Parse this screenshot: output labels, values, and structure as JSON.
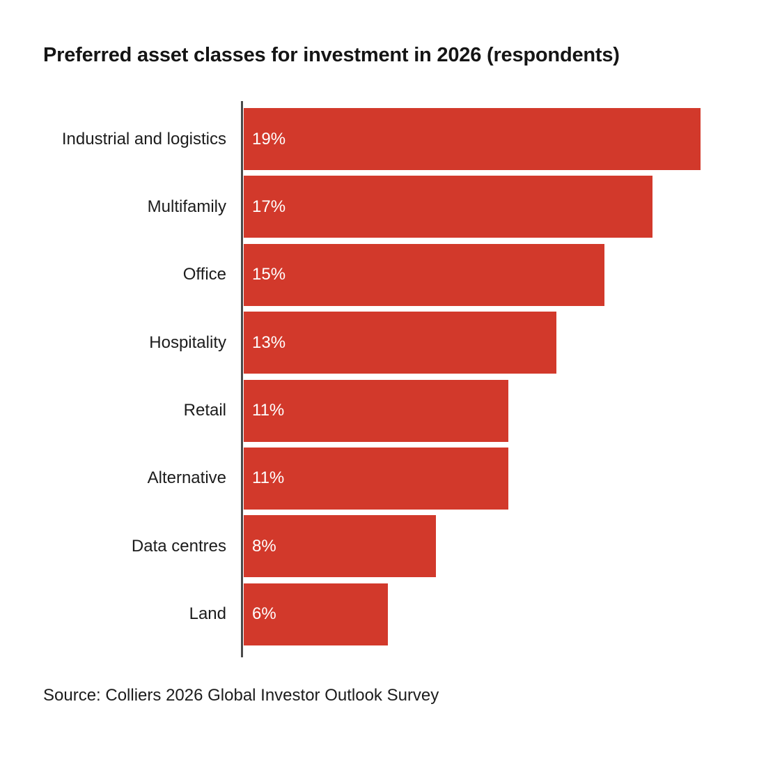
{
  "chart_data": {
    "type": "bar",
    "orientation": "horizontal",
    "title": "Preferred asset classes for investment in 2026 (respondents)",
    "categories": [
      "Industrial and logistics",
      "Multifamily",
      "Office",
      "Hospitality",
      "Retail",
      "Alternative",
      "Data centres",
      "Land"
    ],
    "values": [
      19,
      17,
      15,
      13,
      11,
      11,
      8,
      6
    ],
    "value_labels": [
      "19%",
      "17%",
      "15%",
      "13%",
      "11%",
      "11%",
      "8%",
      "6%"
    ],
    "unit": "%",
    "xlim": [
      0,
      19
    ],
    "grid": false,
    "legend": false,
    "bar_color": "#d2392b",
    "value_label_color": "#ffffff",
    "category_label_color": "#1c1c1c",
    "axis_color": "#4a4a4a",
    "background": "#ffffff",
    "source": "Source: Colliers 2026 Global Investor Outlook Survey"
  }
}
